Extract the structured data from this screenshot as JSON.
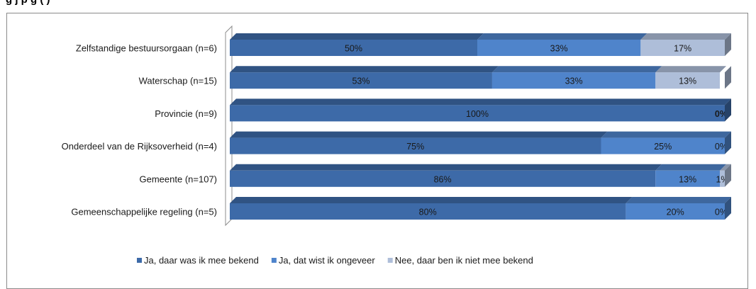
{
  "caption": "g                                                  j  p  g                         (     )",
  "chart_data": {
    "type": "bar",
    "stacked": true,
    "percent": true,
    "orientation": "horizontal",
    "categories": [
      "Zelfstandige bestuursorgaan (n=6)",
      "Waterschap (n=15)",
      "Provincie (n=9)",
      "Onderdeel van de Rijksoverheid (n=4)",
      "Gemeente (n=107)",
      "Gemeenschappelijke regeling (n=5)"
    ],
    "series": [
      {
        "name": "Ja, daar was ik mee bekend",
        "color": "#3d6aa8",
        "values": [
          50,
          53,
          100,
          75,
          86,
          80
        ]
      },
      {
        "name": "Ja, dat wist ik ongeveer",
        "color": "#4f84cb",
        "values": [
          33,
          33,
          0,
          25,
          13,
          20
        ]
      },
      {
        "name": "Nee, daar ben ik niet mee bekend",
        "color": "#aebed9",
        "values": [
          17,
          13,
          0,
          0,
          1,
          0
        ]
      }
    ],
    "labels": [
      [
        "50%",
        "33%",
        "17%"
      ],
      [
        "53%",
        "33%",
        "13%"
      ],
      [
        "100%",
        "",
        "0%"
      ],
      [
        "75%",
        "25%",
        "0%"
      ],
      [
        "86%",
        "13%",
        "1%"
      ],
      [
        "80%",
        "20%",
        "0%"
      ]
    ],
    "xlim": [
      0,
      100
    ],
    "legend": "bottom"
  }
}
